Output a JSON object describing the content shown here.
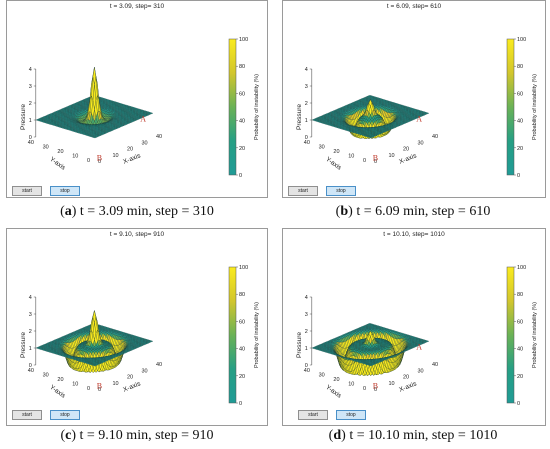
{
  "chart_data": [
    {
      "type": "surface",
      "status": "t = 3.09, step= 310",
      "caption": {
        "letter": "a",
        "text": " t = 3.09 min, step = 310"
      },
      "zlabel": "Pressure",
      "xlabel": "X-axis",
      "ylabel": "Y-axis",
      "zlim": [
        0,
        4
      ],
      "ztick_labels": [
        "0",
        "1",
        "2",
        "3",
        "4"
      ],
      "xy_tick_labels": [
        "0",
        "10",
        "20",
        "30",
        "40"
      ],
      "colorbar": {
        "label": "Probability of instability (%)",
        "range": [
          0,
          100
        ],
        "tick_labels": [
          "0",
          "20",
          "40",
          "60",
          "80",
          "100"
        ]
      },
      "markers": [
        "A",
        "B"
      ],
      "wave": {
        "peak_height": 2.9,
        "ring_radius": 6,
        "ring_depth": 0.3
      },
      "buttons": {
        "start": "start",
        "stop": "stop"
      }
    },
    {
      "type": "surface",
      "status": "t =  6.09, step= 610",
      "caption": {
        "letter": "b",
        "text": " t = 6.09 min, step = 610"
      },
      "zlabel": "Pressure",
      "xlabel": "X-axis",
      "ylabel": "Y-axis",
      "zlim": [
        0,
        4
      ],
      "ztick_labels": [
        "0",
        "1",
        "2",
        "3",
        "4"
      ],
      "xy_tick_labels": [
        "0",
        "10",
        "20",
        "30",
        "40"
      ],
      "colorbar": {
        "label": "Probability of instability (%)",
        "range": [
          0,
          100
        ],
        "tick_labels": [
          "0",
          "20",
          "40",
          "60",
          "80",
          "100"
        ]
      },
      "markers": [
        "A",
        "B"
      ],
      "wave": {
        "peak_height": 1.0,
        "ring_radius": 9,
        "ring_depth": 0.9
      },
      "buttons": {
        "start": "start",
        "stop": "stop"
      }
    },
    {
      "type": "surface",
      "status": "t =  9.10, step= 910",
      "caption": {
        "letter": "c",
        "text": " t = 9.10 min, step = 910"
      },
      "zlabel": "Pressure",
      "xlabel": "X-axis",
      "ylabel": "Y-axis",
      "zlim": [
        0,
        4
      ],
      "ztick_labels": [
        "0",
        "1",
        "2",
        "3",
        "4"
      ],
      "xy_tick_labels": [
        "0",
        "10",
        "20",
        "30",
        "40"
      ],
      "colorbar": {
        "label": "Probability of instability (%)",
        "range": [
          0,
          100
        ],
        "tick_labels": [
          "0",
          "20",
          "40",
          "60",
          "80",
          "100"
        ]
      },
      "markers": [
        "B"
      ],
      "wave": {
        "peak_height": 2.0,
        "ring_radius": 12,
        "ring_depth": 1.1
      },
      "buttons": {
        "start": "start",
        "stop": "stop"
      }
    },
    {
      "type": "surface",
      "status": "t = 10.10, step= 1010",
      "caption": {
        "letter": "d",
        "text": " t = 10.10 min, step = 1010"
      },
      "zlabel": "Pressure",
      "xlabel": "X-axis",
      "ylabel": "Y-axis",
      "zlim": [
        0,
        4
      ],
      "ztick_labels": [
        "0",
        "1",
        "2",
        "3",
        "4"
      ],
      "xy_tick_labels": [
        "0",
        "10",
        "20",
        "30",
        "40"
      ],
      "colorbar": {
        "label": "Probability of instability (%)",
        "range": [
          0,
          100
        ],
        "tick_labels": [
          "0",
          "20",
          "40",
          "60",
          "80",
          "100"
        ]
      },
      "markers": [
        "A",
        "B"
      ],
      "wave": {
        "peak_height": 0.8,
        "ring_radius": 14,
        "ring_depth": 1.2
      },
      "buttons": {
        "start": "start",
        "stop": "stop"
      }
    }
  ]
}
